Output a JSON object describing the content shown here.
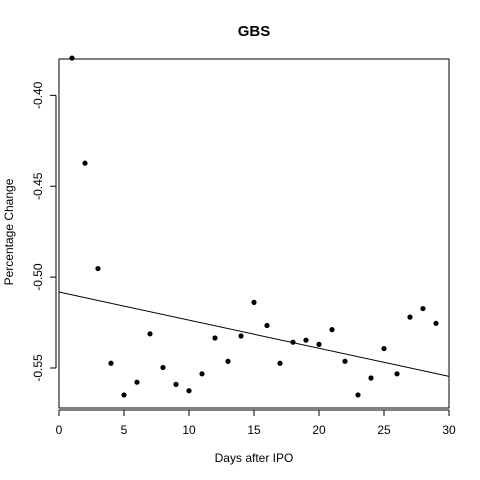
{
  "chart_data": {
    "type": "scatter",
    "title": "GBS",
    "xlabel": "Days after IPO",
    "ylabel": "Percentage Change",
    "xlim": [
      0,
      30
    ],
    "ylim": [
      -0.572,
      -0.38
    ],
    "xticks": [
      0,
      5,
      10,
      15,
      20,
      25,
      30
    ],
    "xtick_labels": [
      "0",
      "5",
      "10",
      "15",
      "20",
      "25",
      "30"
    ],
    "yticks": [
      -0.55,
      -0.5,
      -0.45,
      -0.4
    ],
    "ytick_labels": [
      "-0.55",
      "-0.50",
      "-0.45",
      "-0.40"
    ],
    "grid": false,
    "legend": "none",
    "points": [
      {
        "x": 1,
        "y": -0.3795
      },
      {
        "x": 2,
        "y": -0.4373
      },
      {
        "x": 3,
        "y": -0.4953
      },
      {
        "x": 4,
        "y": -0.5474
      },
      {
        "x": 5,
        "y": -0.5648
      },
      {
        "x": 6,
        "y": -0.5578
      },
      {
        "x": 7,
        "y": -0.5312
      },
      {
        "x": 8,
        "y": -0.5497
      },
      {
        "x": 9,
        "y": -0.559
      },
      {
        "x": 10,
        "y": -0.5625
      },
      {
        "x": 11,
        "y": -0.5532
      },
      {
        "x": 12,
        "y": -0.5335
      },
      {
        "x": 13,
        "y": -0.5463
      },
      {
        "x": 14,
        "y": -0.5324
      },
      {
        "x": 15,
        "y": -0.5139
      },
      {
        "x": 16,
        "y": -0.5266
      },
      {
        "x": 17,
        "y": -0.5474
      },
      {
        "x": 18,
        "y": -0.5358
      },
      {
        "x": 19,
        "y": -0.5347
      },
      {
        "x": 20,
        "y": -0.537
      },
      {
        "x": 21,
        "y": -0.5289
      },
      {
        "x": 22,
        "y": -0.5463
      },
      {
        "x": 23,
        "y": -0.5648
      },
      {
        "x": 24,
        "y": -0.5555
      },
      {
        "x": 25,
        "y": -0.5393
      },
      {
        "x": 26,
        "y": -0.5532
      },
      {
        "x": 27,
        "y": -0.522
      },
      {
        "x": 28,
        "y": -0.5173
      },
      {
        "x": 29,
        "y": -0.5254
      }
    ],
    "fit_line": {
      "x": [
        0,
        30
      ],
      "y": [
        -0.5082,
        -0.5546
      ]
    }
  }
}
